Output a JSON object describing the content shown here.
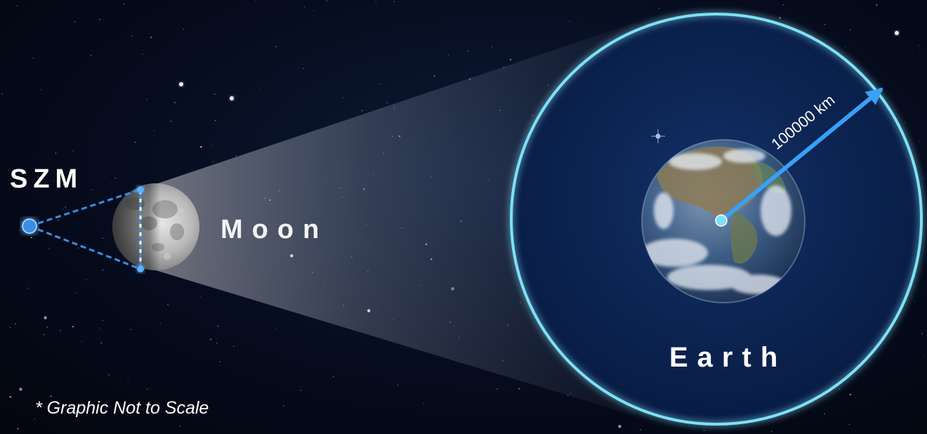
{
  "labels": {
    "observer": "SZM",
    "moon": "Moon",
    "earth": "Earth",
    "radius": "100000 km",
    "note": "* Graphic Not to Scale"
  },
  "colors": {
    "background": "#060c1e",
    "ring": "#7fe0f5",
    "disc": "#0b2453",
    "sightline": "#3a8ee6",
    "arrow": "#39a0f5",
    "cone": "#ffffff"
  },
  "icons": [
    "observer-point-icon",
    "moon-icon",
    "earth-icon",
    "radius-arrow-icon"
  ]
}
